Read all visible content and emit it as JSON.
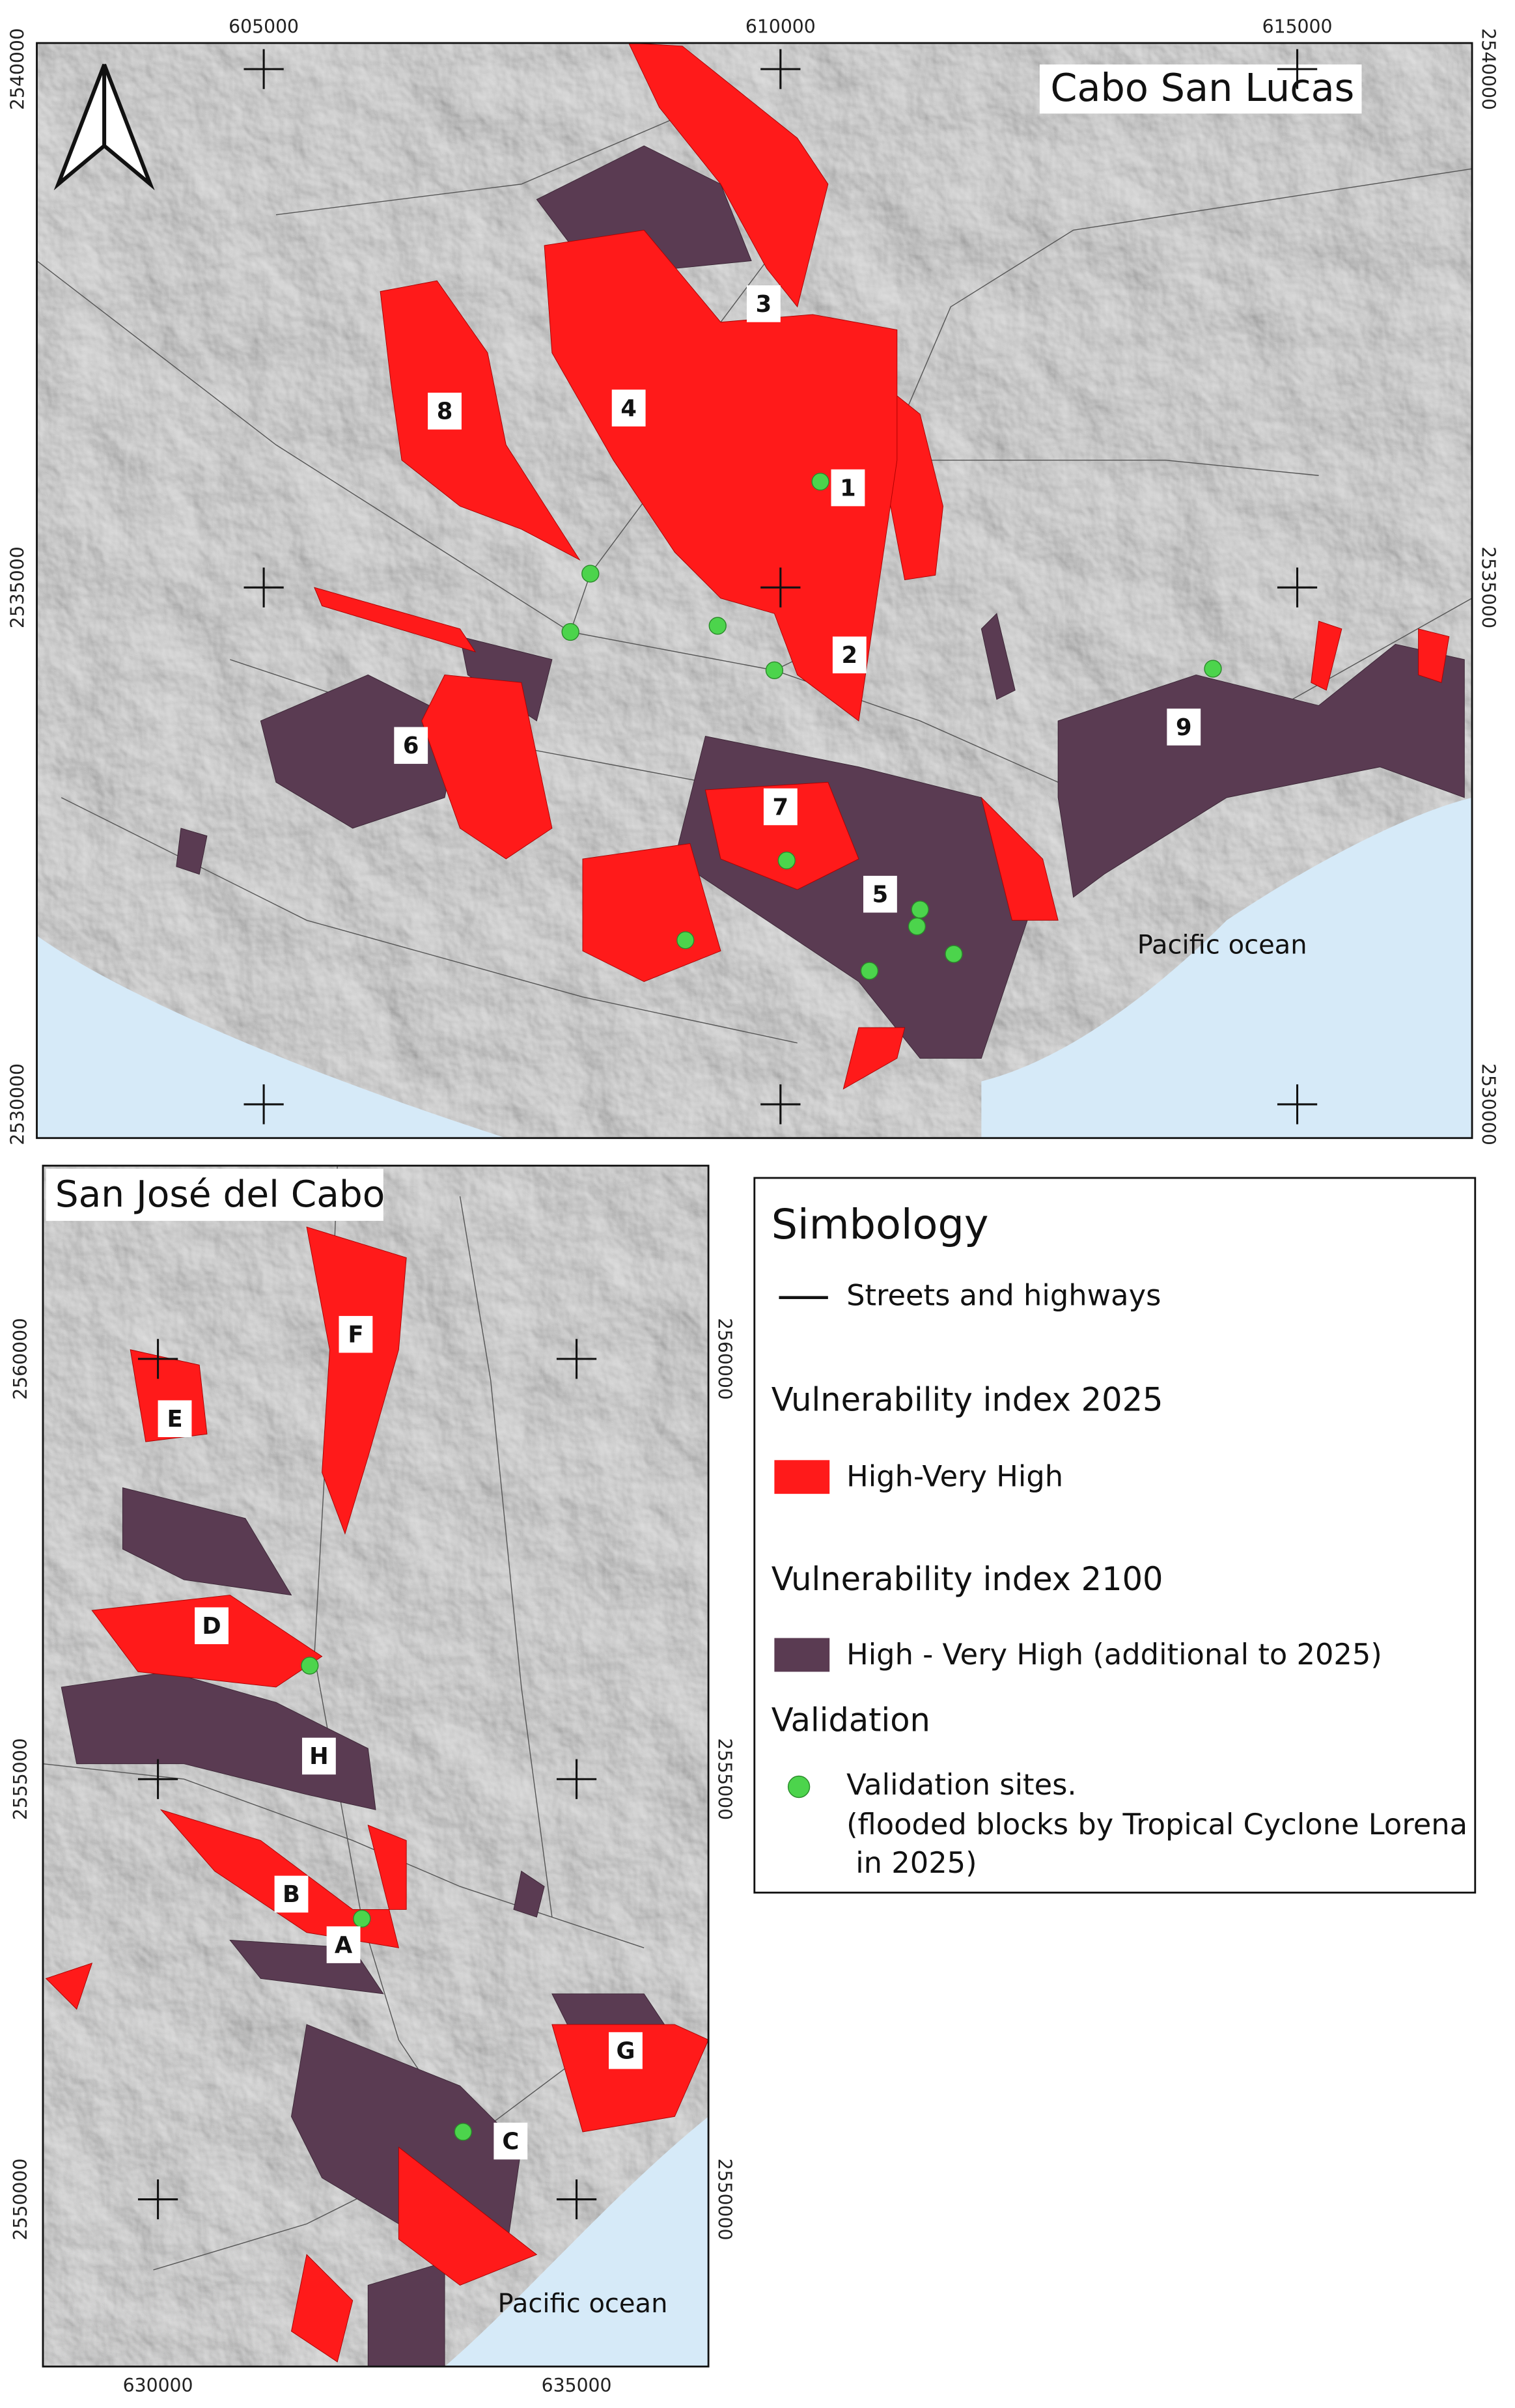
{
  "maps": [
    {
      "title": "Cabo San Lucas",
      "x_labels": [
        "605000",
        "610000",
        "615000"
      ],
      "y_labels": [
        "2540000",
        "2535000",
        "2530000"
      ],
      "area_labels": [
        "1",
        "2",
        "3",
        "4",
        "5",
        "6",
        "7",
        "8",
        "9"
      ],
      "ocean_label": "Pacific ocean"
    },
    {
      "title": "San José del Cabo",
      "x_labels": [
        "630000",
        "635000"
      ],
      "y_labels": [
        "2560000",
        "2555000",
        "2550000"
      ],
      "area_labels": [
        "A",
        "B",
        "C",
        "D",
        "E",
        "F",
        "G",
        "H"
      ],
      "ocean_label": "Pacific ocean"
    }
  ],
  "legend": {
    "title": "Simbology",
    "streets": "Streets and highways",
    "vul2025_title": "Vulnerability index 2025",
    "vul2025": "High-Very High",
    "vul2100_title": "Vulnerability index 2100",
    "vul2100": "High - Very High (additional to 2025)",
    "validation_title": "Validation",
    "validation_lines": [
      "Validation sites.",
      "(flooded blocks by Tropical Cyclone Lorena",
      "in 2025)"
    ]
  }
}
